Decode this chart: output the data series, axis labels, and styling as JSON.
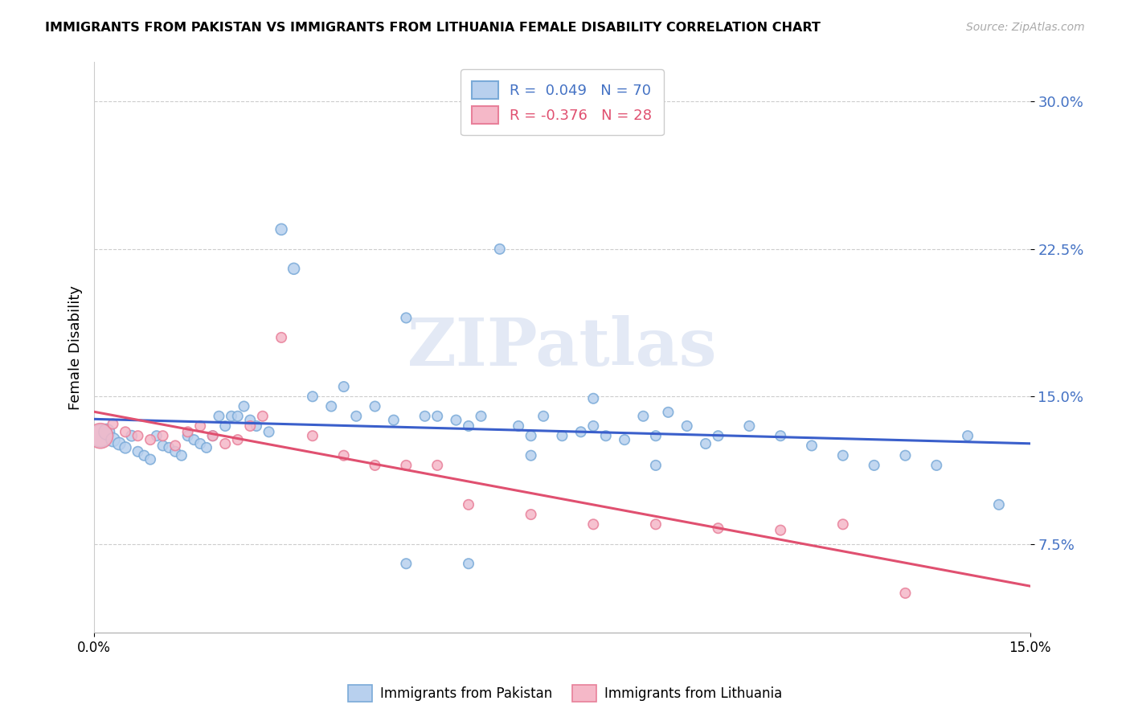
{
  "title": "IMMIGRANTS FROM PAKISTAN VS IMMIGRANTS FROM LITHUANIA FEMALE DISABILITY CORRELATION CHART",
  "source": "Source: ZipAtlas.com",
  "ylabel": "Female Disability",
  "yticks": [
    0.075,
    0.15,
    0.225,
    0.3
  ],
  "ytick_labels": [
    "7.5%",
    "15.0%",
    "22.5%",
    "30.0%"
  ],
  "xlim": [
    0.0,
    0.15
  ],
  "ylim": [
    0.03,
    0.32
  ],
  "pakistan_edge_color": "#7aaad8",
  "pakistan_fill_color": "#b8d0ee",
  "lithuania_edge_color": "#e8809a",
  "lithuania_fill_color": "#f5b8c8",
  "trend_blue": "#3a5fcb",
  "trend_pink": "#e05070",
  "watermark": "ZIPatlas",
  "pakistan_x": [
    0.001,
    0.002,
    0.003,
    0.004,
    0.005,
    0.006,
    0.007,
    0.008,
    0.009,
    0.01,
    0.011,
    0.012,
    0.013,
    0.014,
    0.015,
    0.016,
    0.017,
    0.018,
    0.019,
    0.02,
    0.021,
    0.022,
    0.023,
    0.024,
    0.025,
    0.026,
    0.028,
    0.03,
    0.032,
    0.035,
    0.038,
    0.04,
    0.042,
    0.045,
    0.048,
    0.05,
    0.053,
    0.055,
    0.058,
    0.06,
    0.062,
    0.065,
    0.068,
    0.07,
    0.072,
    0.075,
    0.078,
    0.08,
    0.082,
    0.085,
    0.088,
    0.09,
    0.092,
    0.095,
    0.098,
    0.1,
    0.105,
    0.11,
    0.115,
    0.12,
    0.125,
    0.13,
    0.135,
    0.14,
    0.05,
    0.06,
    0.07,
    0.08,
    0.09,
    0.145
  ],
  "pakistan_y": [
    0.13,
    0.132,
    0.128,
    0.126,
    0.124,
    0.13,
    0.122,
    0.12,
    0.118,
    0.13,
    0.125,
    0.124,
    0.122,
    0.12,
    0.13,
    0.128,
    0.126,
    0.124,
    0.13,
    0.14,
    0.135,
    0.14,
    0.14,
    0.145,
    0.138,
    0.135,
    0.132,
    0.235,
    0.215,
    0.15,
    0.145,
    0.155,
    0.14,
    0.145,
    0.138,
    0.19,
    0.14,
    0.14,
    0.138,
    0.135,
    0.14,
    0.225,
    0.135,
    0.13,
    0.14,
    0.13,
    0.132,
    0.135,
    0.13,
    0.128,
    0.14,
    0.13,
    0.142,
    0.135,
    0.126,
    0.13,
    0.135,
    0.13,
    0.125,
    0.12,
    0.115,
    0.12,
    0.115,
    0.13,
    0.065,
    0.065,
    0.12,
    0.149,
    0.115,
    0.095
  ],
  "pakistan_size": [
    400,
    200,
    150,
    120,
    100,
    90,
    80,
    80,
    80,
    80,
    80,
    80,
    80,
    80,
    80,
    80,
    80,
    80,
    80,
    80,
    80,
    80,
    80,
    80,
    80,
    80,
    80,
    100,
    100,
    80,
    80,
    80,
    80,
    80,
    80,
    80,
    80,
    80,
    80,
    80,
    80,
    80,
    80,
    80,
    80,
    80,
    80,
    80,
    80,
    80,
    80,
    80,
    80,
    80,
    80,
    80,
    80,
    80,
    80,
    80,
    80,
    80,
    80,
    80,
    80,
    80,
    80,
    80,
    80,
    80
  ],
  "lithuania_x": [
    0.001,
    0.003,
    0.005,
    0.007,
    0.009,
    0.011,
    0.013,
    0.015,
    0.017,
    0.019,
    0.021,
    0.023,
    0.025,
    0.027,
    0.03,
    0.035,
    0.04,
    0.045,
    0.05,
    0.055,
    0.06,
    0.07,
    0.08,
    0.09,
    0.1,
    0.11,
    0.12,
    0.13
  ],
  "lithuania_y": [
    0.13,
    0.136,
    0.132,
    0.13,
    0.128,
    0.13,
    0.125,
    0.132,
    0.135,
    0.13,
    0.126,
    0.128,
    0.135,
    0.14,
    0.18,
    0.13,
    0.12,
    0.115,
    0.115,
    0.115,
    0.095,
    0.09,
    0.085,
    0.085,
    0.083,
    0.082,
    0.085,
    0.05
  ],
  "lithuania_size": [
    500,
    80,
    80,
    80,
    80,
    80,
    80,
    80,
    80,
    80,
    80,
    80,
    80,
    80,
    80,
    80,
    80,
    80,
    80,
    80,
    80,
    80,
    80,
    80,
    80,
    80,
    80,
    80
  ]
}
